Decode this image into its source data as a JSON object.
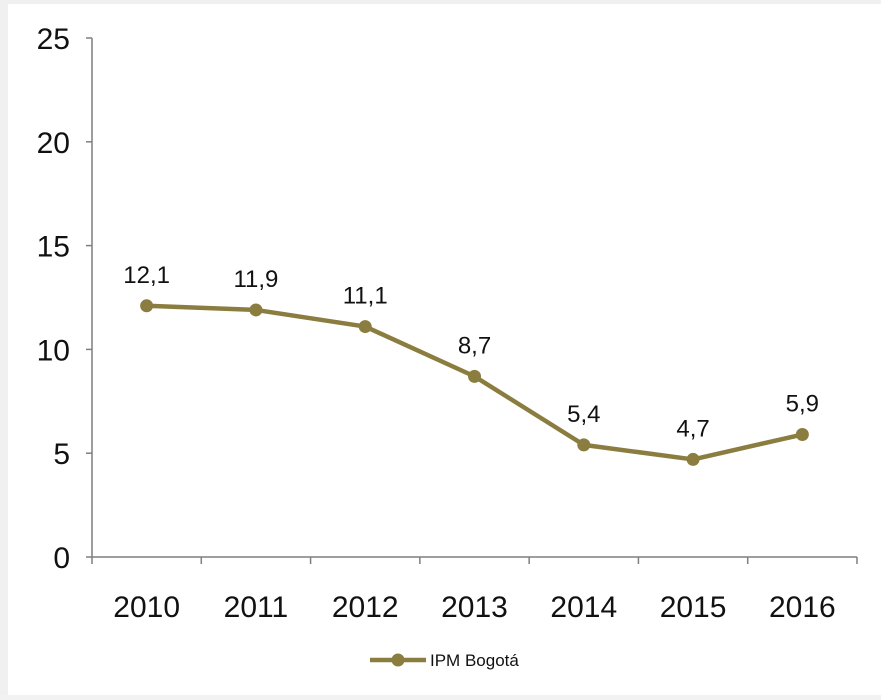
{
  "chart_data": {
    "type": "line",
    "categories": [
      "2010",
      "2011",
      "2012",
      "2013",
      "2014",
      "2015",
      "2016"
    ],
    "series": [
      {
        "name": "IPM Bogotá",
        "values": [
          12.1,
          11.9,
          11.1,
          8.7,
          5.4,
          4.7,
          5.9
        ],
        "labels": [
          "12,1",
          "11,9",
          "11,1",
          "8,7",
          "5,4",
          "4,7",
          "5,9"
        ],
        "color": "#8b7d3f"
      }
    ],
    "ylim": [
      0,
      25
    ],
    "yticks": [
      "0",
      "5",
      "10",
      "15",
      "20",
      "25"
    ],
    "ytick_values": [
      0,
      5,
      10,
      15,
      20,
      25
    ],
    "grid": false,
    "legend_position": "bottom",
    "axis_color": "#7f7f7f"
  }
}
